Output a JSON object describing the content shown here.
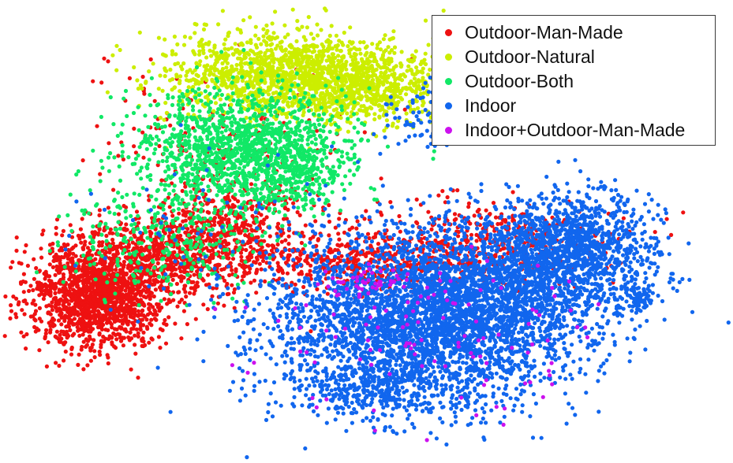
{
  "chart_data": {
    "type": "scatter",
    "title": "",
    "xlabel": "",
    "ylabel": "",
    "axes_visible": false,
    "grid": false,
    "legend_position": "top-right",
    "series": [
      {
        "name": "Outdoor-Man-Made",
        "color": "#ee1111",
        "clusters": [
          {
            "x": 12,
            "y": 65,
            "sx": 5,
            "sy": 6,
            "n": 1500
          },
          {
            "x": 22,
            "y": 56,
            "sx": 7,
            "sy": 5,
            "n": 700
          },
          {
            "x": 32,
            "y": 48,
            "sx": 6,
            "sy": 6,
            "n": 450
          },
          {
            "x": 52,
            "y": 58,
            "sx": 8,
            "sy": 3,
            "n": 350
          },
          {
            "x": 68,
            "y": 52,
            "sx": 10,
            "sy": 5,
            "n": 450
          },
          {
            "x": 30,
            "y": 28,
            "sx": 10,
            "sy": 9,
            "n": 150
          }
        ]
      },
      {
        "name": "Outdoor-Natural",
        "color": "#ccee00",
        "clusters": [
          {
            "x": 40,
            "y": 12,
            "sx": 9,
            "sy": 5,
            "n": 1400
          },
          {
            "x": 52,
            "y": 16,
            "sx": 6,
            "sy": 4,
            "n": 500
          }
        ]
      },
      {
        "name": "Outdoor-Both",
        "color": "#11e866",
        "clusters": [
          {
            "x": 33,
            "y": 30,
            "sx": 8,
            "sy": 7,
            "n": 1300
          },
          {
            "x": 22,
            "y": 52,
            "sx": 8,
            "sy": 6,
            "n": 300
          },
          {
            "x": 40,
            "y": 35,
            "sx": 4,
            "sy": 6,
            "n": 250
          }
        ]
      },
      {
        "name": "Indoor",
        "color": "#1166ee",
        "clusters": [
          {
            "x": 60,
            "y": 72,
            "sx": 11,
            "sy": 10,
            "n": 3200
          },
          {
            "x": 82,
            "y": 53,
            "sx": 6,
            "sy": 6,
            "n": 1000
          },
          {
            "x": 72,
            "y": 62,
            "sx": 10,
            "sy": 8,
            "n": 1200
          },
          {
            "x": 52,
            "y": 88,
            "sx": 6,
            "sy": 3,
            "n": 250
          },
          {
            "x": 92,
            "y": 66,
            "sx": 1.2,
            "sy": 1.5,
            "n": 60
          },
          {
            "x": 60,
            "y": 22,
            "sx": 3,
            "sy": 4,
            "n": 80
          },
          {
            "x": 35,
            "y": 55,
            "sx": 12,
            "sy": 12,
            "n": 120
          }
        ]
      },
      {
        "name": "Indoor+Outdoor-Man-Made",
        "color": "#cc11ee",
        "clusters": [
          {
            "x": 52,
            "y": 62,
            "sx": 3,
            "sy": 2,
            "n": 40
          },
          {
            "x": 62,
            "y": 75,
            "sx": 12,
            "sy": 10,
            "n": 120
          }
        ]
      }
    ]
  }
}
